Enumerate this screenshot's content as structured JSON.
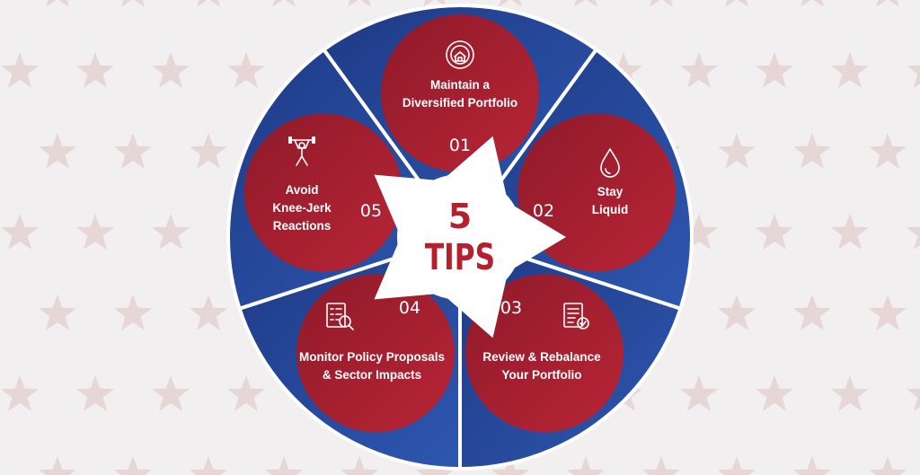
{
  "center": {
    "number": "5",
    "word": "TIPS"
  },
  "tips": [
    {
      "number": "01",
      "line1": "Maintain a",
      "line2": "Diversified Portfolio",
      "icon": "diversification-icon"
    },
    {
      "number": "02",
      "line1": "Stay",
      "line2": "Liquid",
      "icon": "water-drop-icon"
    },
    {
      "number": "03",
      "line1": "Review & Rebalance",
      "line2": "Your Portfolio",
      "icon": "document-review-icon"
    },
    {
      "number": "04",
      "line1": "Monitor Policy Proposals",
      "line2": "& Sector Impacts",
      "icon": "magnifier-list-icon"
    },
    {
      "number": "05",
      "line1": "Avoid",
      "line2": "Knee-Jerk",
      "line3": "Reactions",
      "icon": "weightlifter-icon"
    }
  ],
  "colors": {
    "background": "#f1efef",
    "star": "#e6d6d6",
    "navy": "#1d3275",
    "blue": "#2c4fa2",
    "red": "#a41e2e",
    "white": "#ffffff"
  }
}
